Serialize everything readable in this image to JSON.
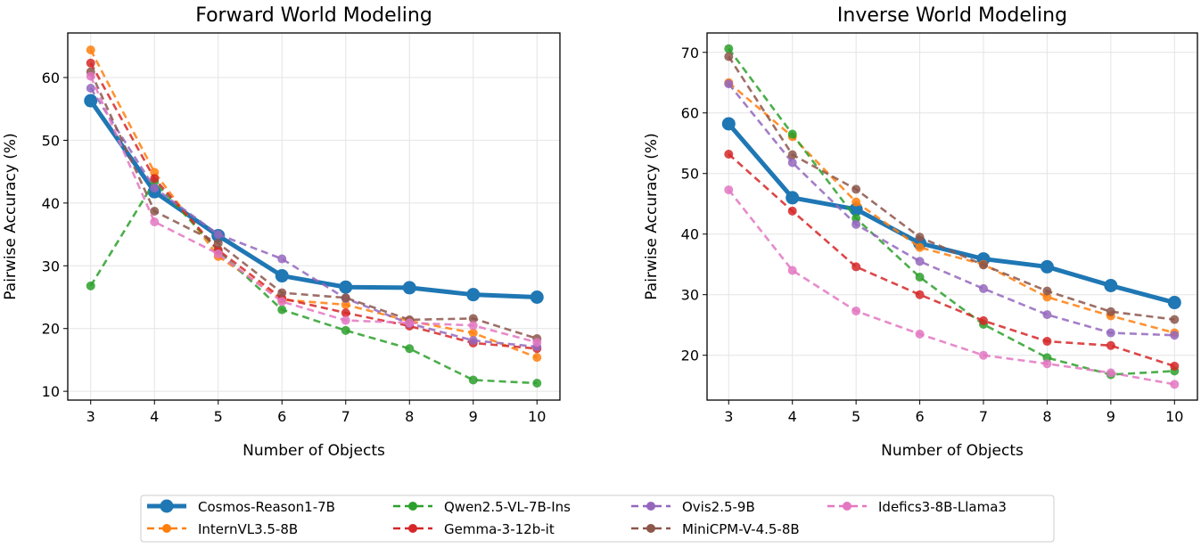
{
  "chart_data": [
    {
      "type": "line",
      "title": "Forward World Modeling",
      "xlabel": "Number of Objects",
      "ylabel": "Pairwise Accuracy (%)",
      "x": [
        3,
        4,
        5,
        6,
        7,
        8,
        9,
        10
      ],
      "xlim": [
        2.64,
        10.36
      ],
      "ylim": [
        8.6,
        67.1
      ],
      "yticks": [
        10,
        20,
        30,
        40,
        50,
        60
      ],
      "grid": true,
      "series": [
        {
          "name": "Cosmos-Reason1-7B",
          "color": "#1f77b4",
          "style": "solid",
          "values": [
            56.3,
            41.8,
            34.8,
            28.4,
            26.6,
            26.5,
            25.4,
            25.0
          ]
        },
        {
          "name": "InternVL3.5-8B",
          "color": "#ff7f0e",
          "style": "dashed",
          "values": [
            64.4,
            44.9,
            31.5,
            24.6,
            23.8,
            21.2,
            19.3,
            15.4
          ]
        },
        {
          "name": "Qwen2.5-VL-7B-Ins",
          "color": "#2ca02c",
          "style": "dashed",
          "values": [
            26.8,
            43.4,
            32.4,
            23.0,
            19.7,
            16.8,
            11.8,
            11.3
          ]
        },
        {
          "name": "Gemma-3-12b-it",
          "color": "#d62728",
          "style": "dashed",
          "values": [
            62.3,
            43.9,
            32.5,
            24.8,
            22.5,
            20.4,
            17.7,
            16.8
          ]
        },
        {
          "name": "Ovis2.5-9B",
          "color": "#9467bd",
          "style": "dashed",
          "values": [
            58.3,
            42.4,
            35.0,
            31.1,
            24.8,
            20.8,
            18.1,
            17.1
          ]
        },
        {
          "name": "MiniCPM-V-4.5-8B",
          "color": "#8c564b",
          "style": "dashed",
          "values": [
            60.9,
            38.7,
            33.6,
            25.7,
            24.9,
            21.4,
            21.6,
            18.4
          ]
        },
        {
          "name": "Idefics3-8B-Llama3",
          "color": "#e377c2",
          "style": "dashed",
          "values": [
            60.2,
            37.0,
            31.9,
            24.3,
            21.3,
            20.9,
            20.5,
            17.8
          ]
        }
      ]
    },
    {
      "type": "line",
      "title": "Inverse World Modeling",
      "xlabel": "Number of Objects",
      "ylabel": "Pairwise Accuracy (%)",
      "x": [
        3,
        4,
        5,
        6,
        7,
        8,
        9,
        10
      ],
      "xlim": [
        2.66,
        10.36
      ],
      "ylim": [
        12.6,
        73.2
      ],
      "yticks": [
        20,
        30,
        40,
        50,
        60,
        70
      ],
      "grid": true,
      "series": [
        {
          "name": "Cosmos-Reason1-7B",
          "color": "#1f77b4",
          "style": "solid",
          "values": [
            58.2,
            46.0,
            44.1,
            38.5,
            35.9,
            34.6,
            31.5,
            28.7
          ]
        },
        {
          "name": "InternVL3.5-8B",
          "color": "#ff7f0e",
          "style": "dashed",
          "values": [
            65.0,
            56.1,
            45.3,
            37.8,
            35.0,
            29.6,
            26.5,
            23.7
          ]
        },
        {
          "name": "Qwen2.5-VL-7B-Ins",
          "color": "#2ca02c",
          "style": "dashed",
          "values": [
            70.6,
            56.5,
            42.6,
            32.9,
            25.1,
            19.6,
            16.8,
            17.4
          ]
        },
        {
          "name": "Gemma-3-12b-it",
          "color": "#d62728",
          "style": "dashed",
          "values": [
            53.2,
            43.8,
            34.6,
            30.0,
            25.7,
            22.3,
            21.6,
            18.2
          ]
        },
        {
          "name": "Ovis2.5-9B",
          "color": "#9467bd",
          "style": "dashed",
          "values": [
            64.8,
            51.8,
            41.6,
            35.5,
            31.0,
            26.7,
            23.7,
            23.3
          ]
        },
        {
          "name": "MiniCPM-V-4.5-8B",
          "color": "#8c564b",
          "style": "dashed",
          "values": [
            69.3,
            53.1,
            47.4,
            39.5,
            34.9,
            30.6,
            27.2,
            25.9
          ]
        },
        {
          "name": "Idefics3-8B-Llama3",
          "color": "#e377c2",
          "style": "dashed",
          "values": [
            47.3,
            34.0,
            27.3,
            23.5,
            20.0,
            18.6,
            17.1,
            15.2
          ]
        }
      ]
    }
  ],
  "legend": {
    "placement": "bottom-center",
    "entries": [
      "Cosmos-Reason1-7B",
      "InternVL3.5-8B",
      "Qwen2.5-VL-7B-Ins",
      "Gemma-3-12b-it",
      "Ovis2.5-9B",
      "MiniCPM-V-4.5-8B",
      "Idefics3-8B-Llama3"
    ]
  }
}
